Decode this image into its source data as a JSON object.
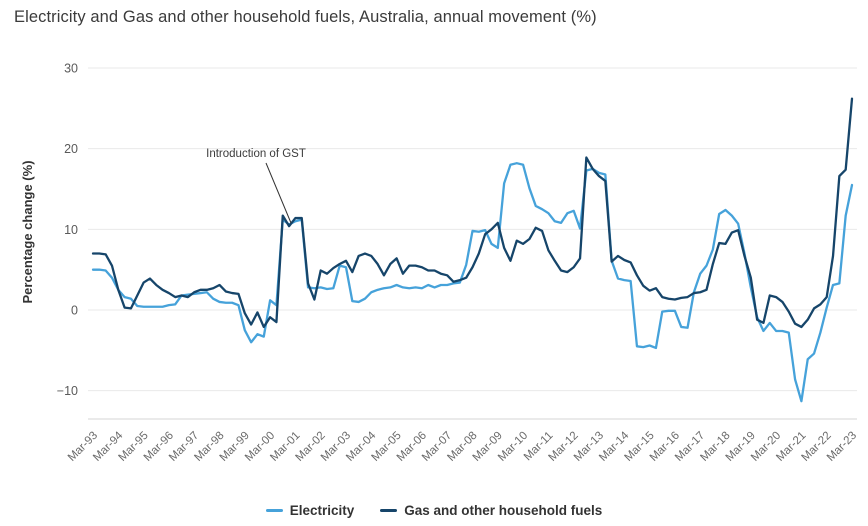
{
  "title": "Electricity and Gas and other household fuels, Australia, annual movement (%)",
  "chart_data": {
    "type": "line",
    "title": "Electricity and Gas and other household fuels, Australia, annual movement (%)",
    "xlabel": "",
    "ylabel": "Percentage change (%)",
    "ylim": [
      -13,
      30
    ],
    "yticks": [
      30,
      20,
      10,
      0,
      -10
    ],
    "grid": "horizontal",
    "legend_position": "bottom",
    "x_frequency": "quarterly",
    "x_start": "Mar-93",
    "x_end": "Mar-23",
    "x_tick_labels": [
      "Mar-93",
      "Mar-94",
      "Mar-95",
      "Mar-96",
      "Mar-97",
      "Mar-98",
      "Mar-99",
      "Mar-00",
      "Mar-01",
      "Mar-02",
      "Mar-03",
      "Mar-04",
      "Mar-05",
      "Mar-06",
      "Mar-07",
      "Mar-08",
      "Mar-09",
      "Mar-10",
      "Mar-11",
      "Mar-12",
      "Mar-13",
      "Mar-14",
      "Mar-15",
      "Mar-16",
      "Mar-17",
      "Mar-18",
      "Mar-19",
      "Mar-20",
      "Mar-21",
      "Mar-22",
      "Mar-23"
    ],
    "annotation": {
      "text": "Introduction of GST",
      "points_to_quarter": "Sep-00"
    },
    "series": [
      {
        "name": "Electricity",
        "color": "#46A2DA",
        "values": [
          5.0,
          5.0,
          4.9,
          4.0,
          2.5,
          1.6,
          1.4,
          0.5,
          0.4,
          0.4,
          0.4,
          0.4,
          0.6,
          0.7,
          1.8,
          1.9,
          2.0,
          2.1,
          2.2,
          1.4,
          1.0,
          0.9,
          0.9,
          0.6,
          -2.5,
          -4.0,
          -3.0,
          -3.3,
          1.2,
          0.6,
          11.2,
          10.6,
          11.0,
          11.2,
          2.8,
          2.7,
          2.8,
          2.6,
          2.7,
          5.5,
          5.3,
          1.1,
          1.0,
          1.4,
          2.2,
          2.5,
          2.7,
          2.8,
          3.1,
          2.8,
          2.7,
          2.8,
          2.7,
          3.1,
          2.8,
          3.1,
          3.1,
          3.3,
          3.4,
          5.6,
          9.8,
          9.7,
          9.9,
          8.2,
          7.7,
          15.7,
          18.0,
          18.2,
          18.0,
          15.1,
          12.9,
          12.5,
          12.0,
          11.0,
          10.8,
          12.0,
          12.3,
          10.1,
          17.3,
          17.5,
          17.0,
          16.8,
          6.1,
          3.9,
          3.7,
          3.6,
          -4.5,
          -4.6,
          -4.4,
          -4.7,
          -0.2,
          -0.1,
          -0.1,
          -2.1,
          -2.2,
          2.2,
          4.5,
          5.5,
          7.5,
          11.9,
          12.4,
          11.7,
          10.7,
          7.0,
          2.8,
          -0.9,
          -2.6,
          -1.6,
          -2.6,
          -2.6,
          -2.8,
          -8.6,
          -11.3,
          -6.1,
          -5.4,
          -2.8,
          0.3,
          3.1,
          3.3,
          11.7,
          15.5
        ]
      },
      {
        "name": "Gas and other household fuels",
        "color": "#16456A",
        "values": [
          7.0,
          7.0,
          6.9,
          5.5,
          2.5,
          0.3,
          0.2,
          1.8,
          3.4,
          3.9,
          3.1,
          2.5,
          2.1,
          1.6,
          1.8,
          1.6,
          2.2,
          2.5,
          2.5,
          2.7,
          3.1,
          2.3,
          2.1,
          2.0,
          -0.4,
          -1.8,
          -0.3,
          -2.1,
          -0.9,
          -1.5,
          11.7,
          10.4,
          11.4,
          11.4,
          3.3,
          1.3,
          4.9,
          4.5,
          5.2,
          5.7,
          6.1,
          4.7,
          6.7,
          7.0,
          6.7,
          5.7,
          4.3,
          5.7,
          6.4,
          4.5,
          5.5,
          5.5,
          5.3,
          4.9,
          4.9,
          4.5,
          4.3,
          3.5,
          3.7,
          4.0,
          5.3,
          7.0,
          9.4,
          10.0,
          10.8,
          7.7,
          6.1,
          8.6,
          8.2,
          8.8,
          10.2,
          9.8,
          7.4,
          6.1,
          4.9,
          4.7,
          5.3,
          6.4,
          18.9,
          17.5,
          16.6,
          16.0,
          6.0,
          6.7,
          6.2,
          5.9,
          4.3,
          3.0,
          2.4,
          2.7,
          1.6,
          1.4,
          1.3,
          1.5,
          1.6,
          2.1,
          2.2,
          2.5,
          5.7,
          8.3,
          8.2,
          9.6,
          9.9,
          6.7,
          4.0,
          -1.2,
          -1.6,
          1.8,
          1.6,
          1.0,
          -0.2,
          -1.7,
          -2.1,
          -1.2,
          0.2,
          0.7,
          1.6,
          6.7,
          16.6,
          17.4,
          26.2
        ]
      }
    ]
  },
  "legend": {
    "items": [
      {
        "label": "Electricity"
      },
      {
        "label": "Gas and other household fuels"
      }
    ]
  },
  "colors": {
    "grid": "#e9e9e9",
    "axis_line": "#d4d4d4",
    "annotation_line": "#333333"
  }
}
